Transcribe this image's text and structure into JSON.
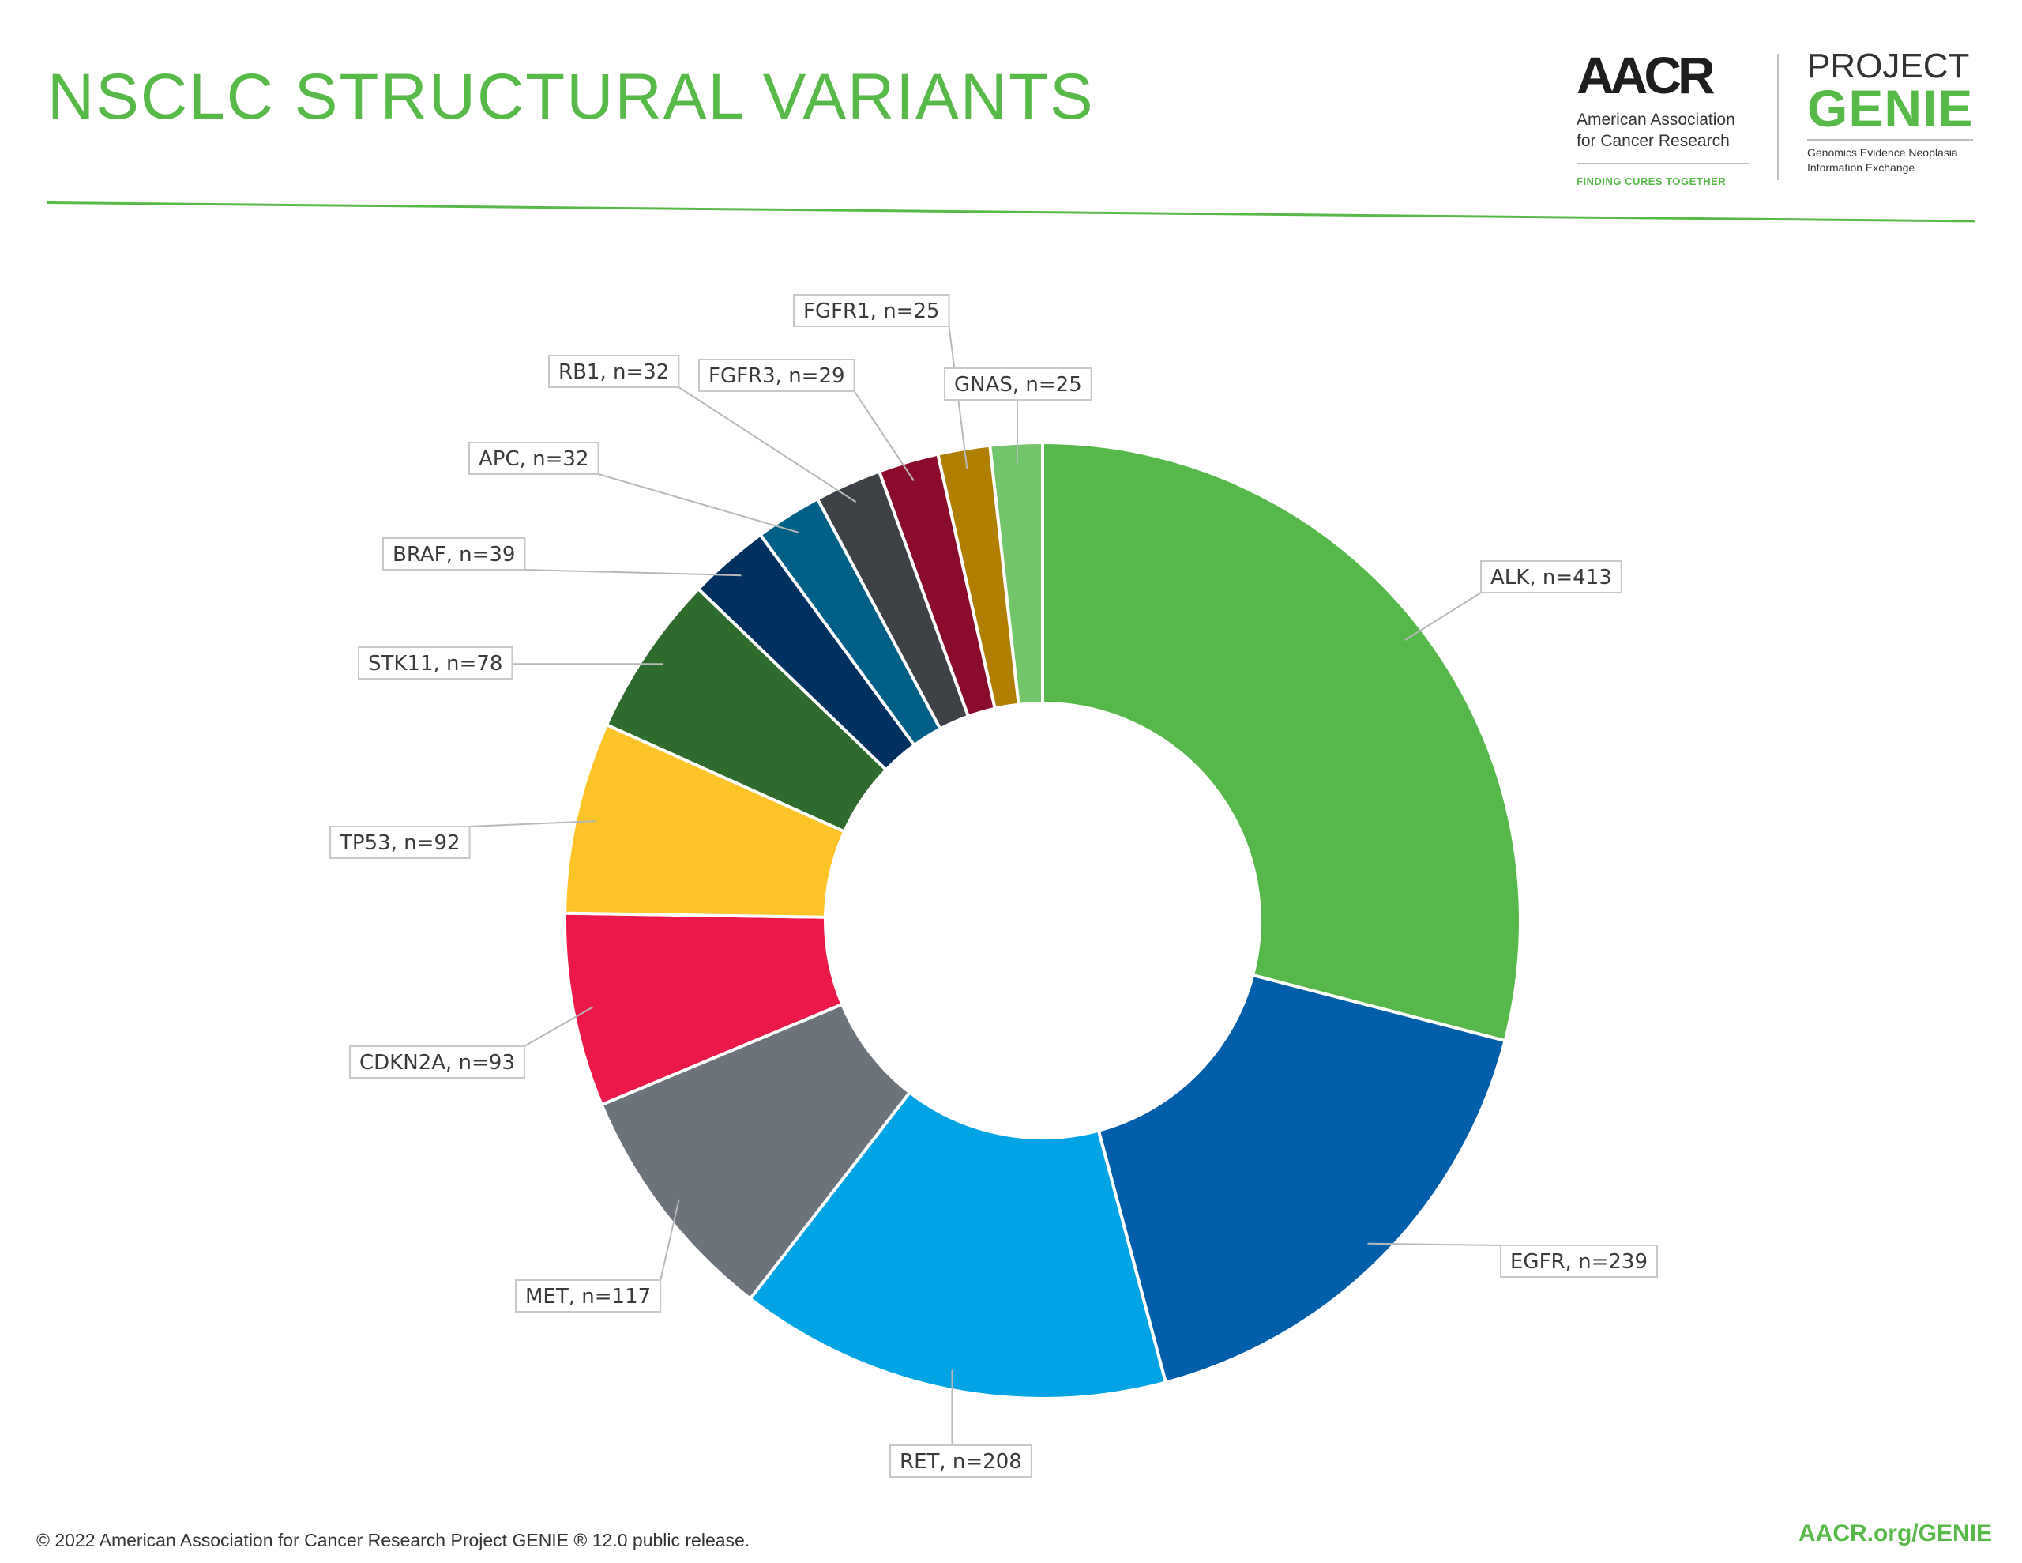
{
  "header": {
    "title": "NSCLC STRUCTURAL VARIANTS",
    "accent_color": "#57b947",
    "divider_color": "#57b947"
  },
  "logos": {
    "aacr": {
      "mark": "AACR",
      "name_line1": "American Association",
      "name_line2": "for Cancer Research",
      "tagline": "FINDING CURES TOGETHER"
    },
    "genie": {
      "project": "PROJECT",
      "word": "GENIE",
      "sub_line1": "Genomics Evidence Neoplasia",
      "sub_line2": "Information Exchange"
    }
  },
  "footer": {
    "copyright": "© 2022 American Association for Cancer Research Project GENIE ® 12.0 public release.",
    "url": "AACR.org/GENIE"
  },
  "chart_data": {
    "type": "pie",
    "variant": "donut",
    "start": "top, clockwise",
    "slices": [
      {
        "label": "ALK",
        "value": 413,
        "text": "ALK, n=413",
        "color": "#56b84b"
      },
      {
        "label": "EGFR",
        "value": 239,
        "text": "EGFR, n=239",
        "color": "#005eab"
      },
      {
        "label": "RET",
        "value": 208,
        "text": "RET, n=208",
        "color": "#00a3e3"
      },
      {
        "label": "MET",
        "value": 117,
        "text": "MET, n=117",
        "color": "#6c737a"
      },
      {
        "label": "CDKN2A",
        "value": 93,
        "text": "CDKN2A, n=93",
        "color": "#ec1849"
      },
      {
        "label": "TP53",
        "value": 92,
        "text": "TP53, n=92",
        "color": "#fdc327"
      },
      {
        "label": "STK11",
        "value": 78,
        "text": "STK11, n=78",
        "color": "#2f6b2c"
      },
      {
        "label": "BRAF",
        "value": 39,
        "text": "BRAF, n=39",
        "color": "#00305f"
      },
      {
        "label": "APC",
        "value": 32,
        "text": "APC, n=32",
        "color": "#005f87"
      },
      {
        "label": "RB1",
        "value": 32,
        "text": "RB1, n=32",
        "color": "#3e4246"
      },
      {
        "label": "FGFR3",
        "value": 29,
        "text": "FGFR3, n=29",
        "color": "#8b0b2d"
      },
      {
        "label": "FGFR1",
        "value": 25,
        "text": "FGFR1, n=25",
        "color": "#b07f00"
      },
      {
        "label": "GNAS",
        "value": 25,
        "text": "GNAS, n=25",
        "color": "#72c56b"
      }
    ]
  }
}
